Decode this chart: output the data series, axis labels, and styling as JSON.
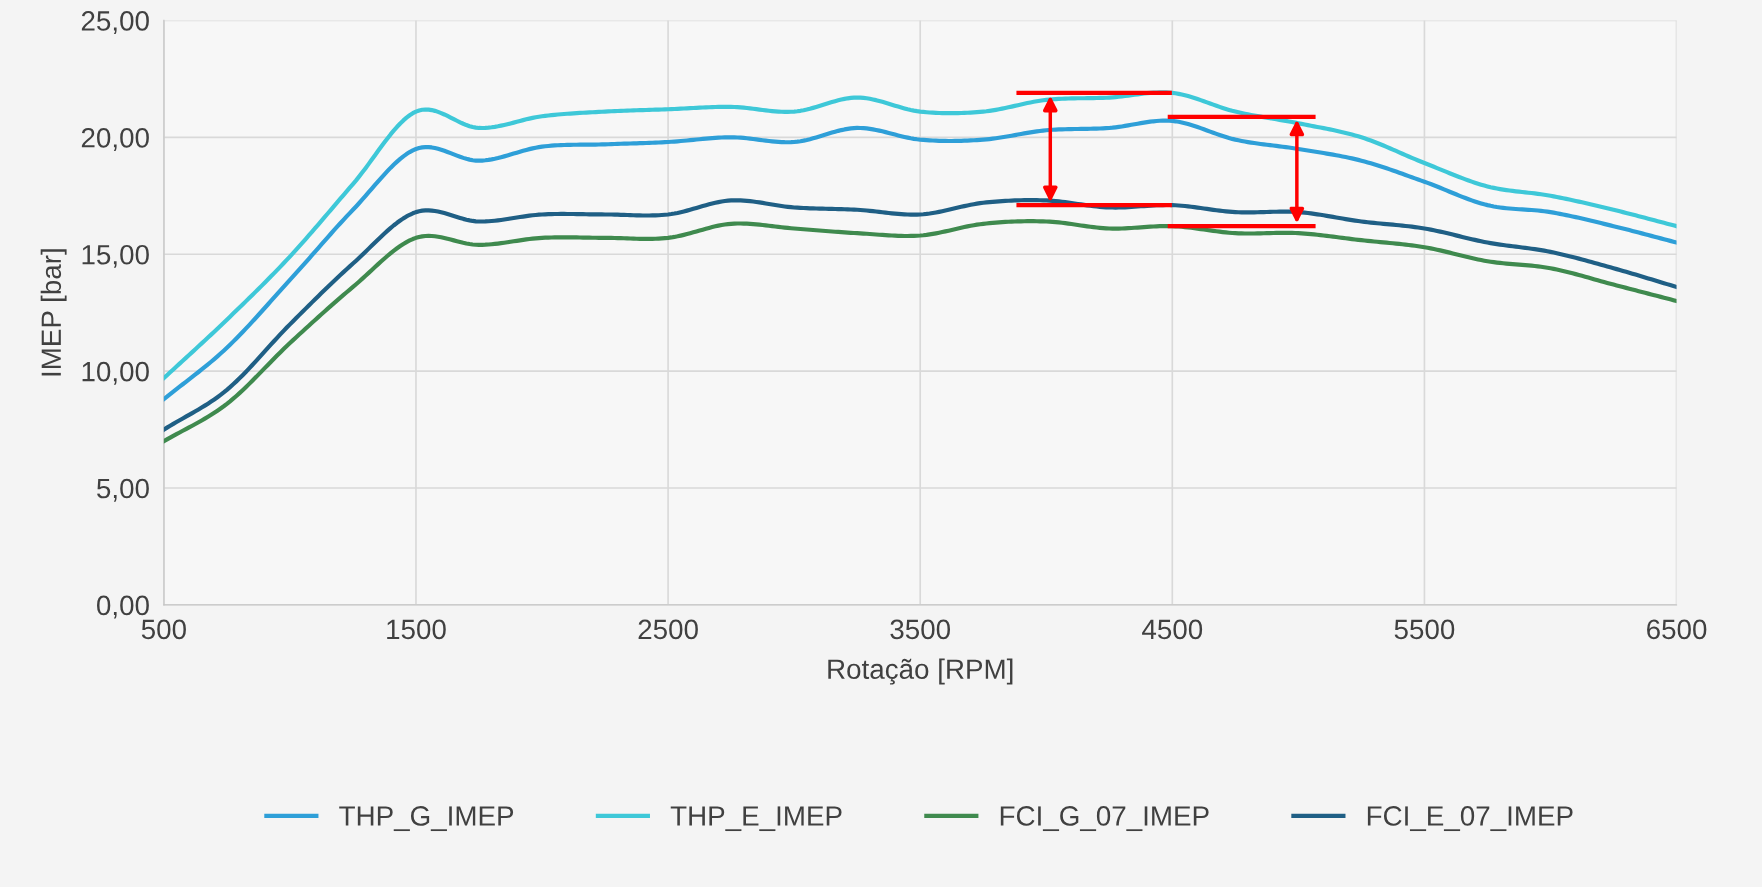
{
  "chart_data": {
    "type": "line",
    "xlabel": "Rotação [RPM]",
    "ylabel": "IMEP [bar]",
    "x": [
      500,
      750,
      1000,
      1250,
      1500,
      1750,
      2000,
      2250,
      2500,
      2750,
      3000,
      3250,
      3500,
      3750,
      4000,
      4250,
      4500,
      4750,
      5000,
      5250,
      5500,
      5750,
      6000,
      6250,
      6500
    ],
    "series": [
      {
        "name": "THP_G_IMEP",
        "color": "#2e9fd8",
        "values": [
          8.8,
          11.0,
          13.9,
          16.9,
          19.5,
          19.0,
          19.6,
          19.7,
          19.8,
          20.0,
          19.8,
          20.4,
          19.9,
          19.9,
          20.3,
          20.4,
          20.7,
          19.9,
          19.5,
          19.0,
          18.1,
          17.1,
          16.8,
          16.2,
          15.5
        ]
      },
      {
        "name": "THP_E_IMEP",
        "color": "#3ec8d8",
        "values": [
          9.7,
          12.2,
          14.9,
          18.0,
          21.1,
          20.4,
          20.9,
          21.1,
          21.2,
          21.3,
          21.1,
          21.7,
          21.1,
          21.1,
          21.6,
          21.7,
          21.9,
          21.1,
          20.6,
          20.0,
          18.9,
          17.9,
          17.5,
          16.9,
          16.2
        ]
      },
      {
        "name": "FCI_G_07_IMEP",
        "color": "#3f8a4e",
        "values": [
          7.0,
          8.6,
          11.2,
          13.6,
          15.7,
          15.4,
          15.7,
          15.7,
          15.7,
          16.3,
          16.1,
          15.9,
          15.8,
          16.3,
          16.4,
          16.1,
          16.2,
          15.9,
          15.9,
          15.6,
          15.3,
          14.7,
          14.4,
          13.7,
          13.0
        ]
      },
      {
        "name": "FCI_E_07_IMEP",
        "color": "#1f5f85",
        "values": [
          7.5,
          9.2,
          12.0,
          14.6,
          16.8,
          16.4,
          16.7,
          16.7,
          16.7,
          17.3,
          17.0,
          16.9,
          16.7,
          17.2,
          17.3,
          17.0,
          17.1,
          16.8,
          16.8,
          16.4,
          16.1,
          15.5,
          15.1,
          14.4,
          13.6
        ]
      }
    ],
    "xlim": [
      500,
      6500
    ],
    "xticks": [
      500,
      1500,
      2500,
      3500,
      4500,
      5500,
      6500
    ],
    "ylim": [
      0,
      25
    ],
    "yticks": [
      {
        "value": 0,
        "label": "0,00"
      },
      {
        "value": 5,
        "label": "5,00"
      },
      {
        "value": 10,
        "label": "10,00"
      },
      {
        "value": 15,
        "label": "15,00"
      },
      {
        "value": 20,
        "label": "20,00"
      },
      {
        "value": 25,
        "label": "25,00"
      }
    ],
    "grid": true,
    "legend": "bottom",
    "marker": "none",
    "line_style": "solid"
  }
}
